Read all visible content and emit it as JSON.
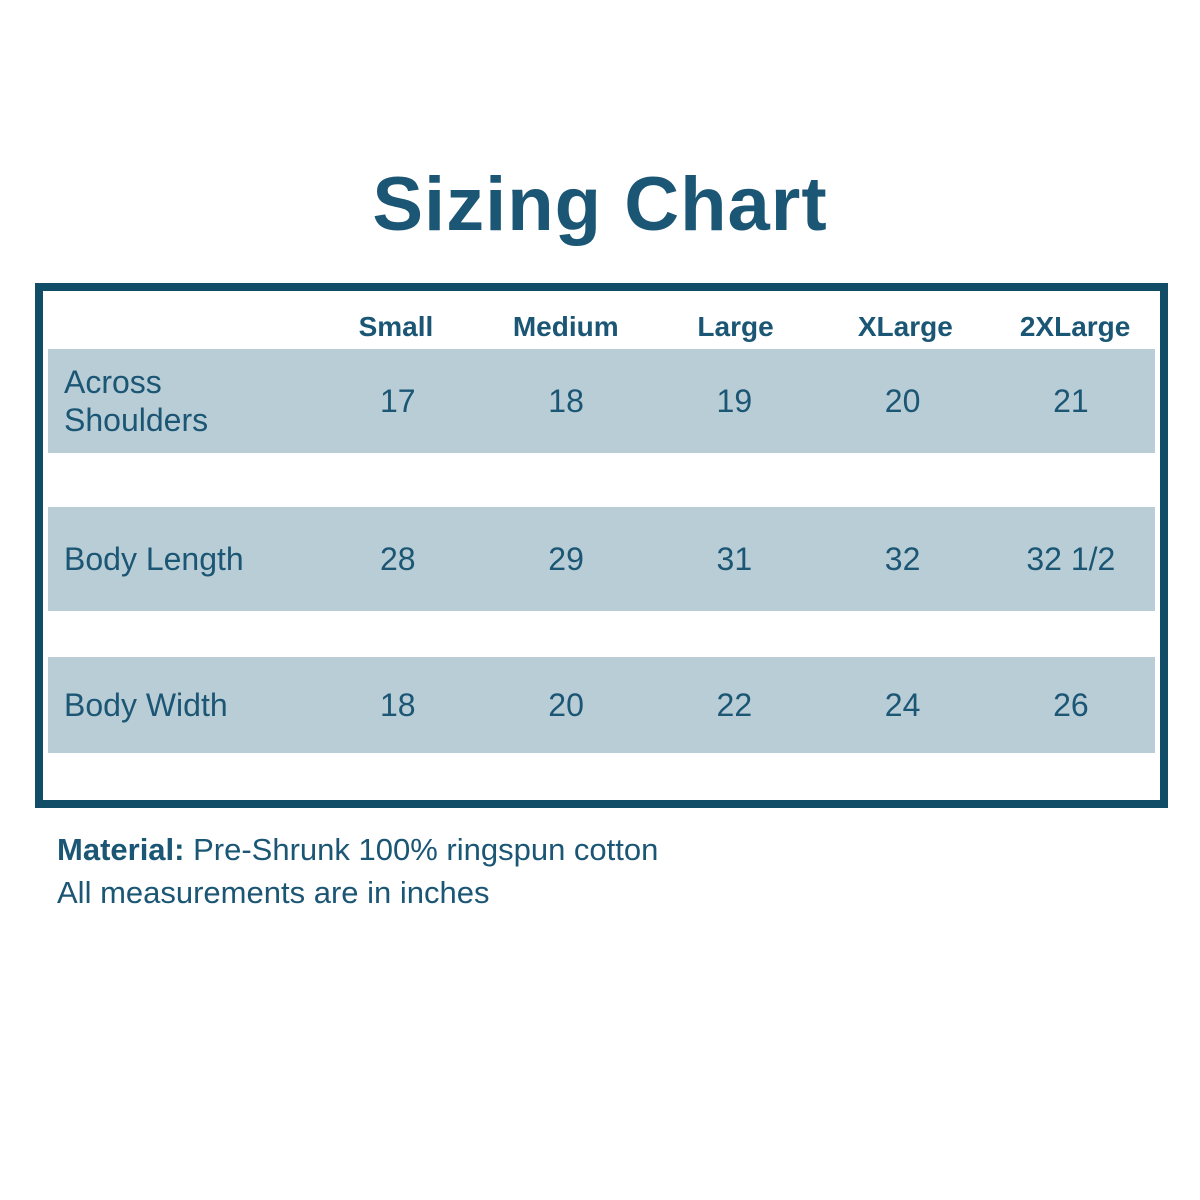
{
  "title": "Sizing Chart",
  "table": {
    "columns": [
      "Small",
      "Medium",
      "Large",
      "XLarge",
      "2XLarge"
    ],
    "rows": [
      {
        "label": "Across Shoulders",
        "values": [
          "17",
          "18",
          "19",
          "20",
          "21"
        ]
      },
      {
        "label": "Body Length",
        "values": [
          "28",
          "29",
          "31",
          "32",
          "32 1/2"
        ]
      },
      {
        "label": "Body Width",
        "values": [
          "18",
          "20",
          "22",
          "24",
          "26"
        ]
      }
    ]
  },
  "footer": {
    "material_label": "Material:",
    "material_value": "Pre-Shrunk 100% ringspun cotton",
    "note": "All measurements are in inches"
  },
  "colors": {
    "ink": "#1b5674",
    "border": "#124d68",
    "band": "#b9cdd6",
    "bg": "#ffffff"
  },
  "chart_data": {
    "type": "table",
    "title": "Sizing Chart",
    "categories": [
      "Small",
      "Medium",
      "Large",
      "XLarge",
      "2XLarge"
    ],
    "series": [
      {
        "name": "Across Shoulders",
        "values": [
          17,
          18,
          19,
          20,
          21
        ]
      },
      {
        "name": "Body Length",
        "values": [
          28,
          29,
          31,
          32,
          32.5
        ]
      },
      {
        "name": "Body Width",
        "values": [
          18,
          20,
          22,
          24,
          26
        ]
      }
    ],
    "units": "inches",
    "notes": [
      "Material: Pre-Shrunk 100% ringspun cotton",
      "All measurements are in inches"
    ]
  }
}
